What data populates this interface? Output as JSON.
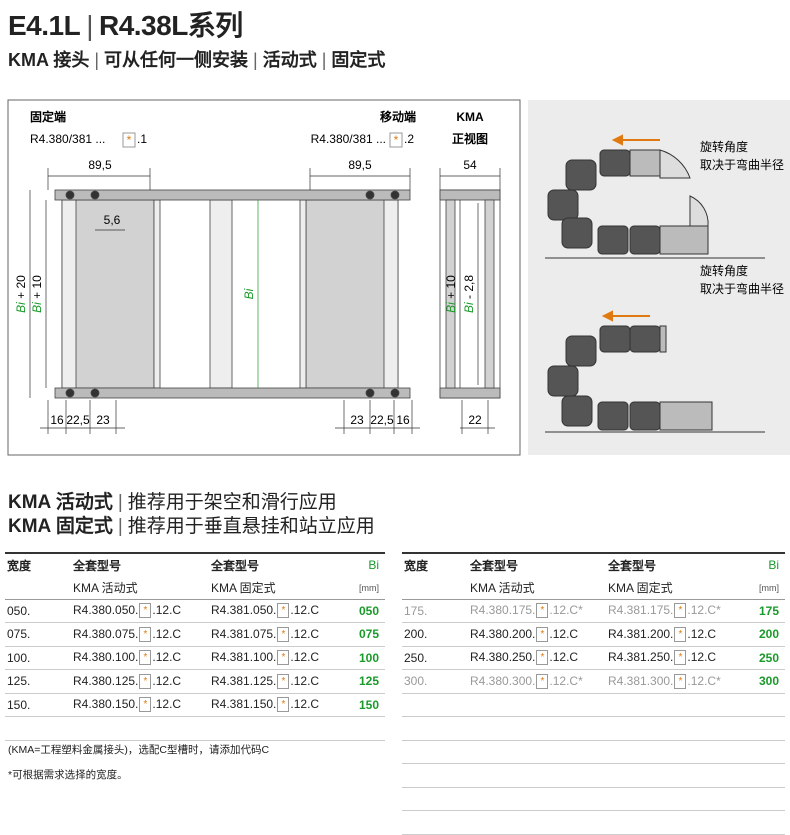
{
  "header": {
    "title_a": "E4.1L",
    "title_b": "R4.38L系列",
    "subtitle": [
      "KMA 接头",
      "可从任何一侧安装",
      "活动式",
      "固定式"
    ]
  },
  "diagram": {
    "fixed_end": "固定端",
    "fixed_code": "R4.380/381 ...",
    "fixed_suffix": ".1",
    "moving_end": "移动端",
    "moving_code": "R4.380/381 ...",
    "moving_suffix": ".2",
    "kma": "KMA",
    "front_view": "正视图",
    "marker": "*",
    "dim_left": "89,5",
    "dim_right": "89,5",
    "dim_front": "54",
    "dim_small": "5,6",
    "dim_center": "Bi",
    "vertical": [
      {
        "var": "Bi",
        "rest": " + 20"
      },
      {
        "var": "Bi",
        "rest": " + 10"
      },
      {
        "var": "Bi",
        "rest": " + 10"
      },
      {
        "var": "Bi",
        "rest": " - 2,8"
      }
    ],
    "bottom_left": [
      "16",
      "22,5",
      "23"
    ],
    "bottom_right": [
      "23",
      "22,5",
      "16"
    ],
    "bottom_front": "22",
    "note_top": [
      "旋转角度",
      "取决于弯曲半径"
    ],
    "note_bottom": [
      "旋转角度",
      "取决于弯曲半径"
    ]
  },
  "sections": [
    {
      "name": "KMA 活动式",
      "text": "推荐用于架空和滑行应用"
    },
    {
      "name": "KMA 固定式",
      "text": "推荐用于垂直悬挂和站立应用"
    }
  ],
  "tables": {
    "marker": "*",
    "header": {
      "width": "宽度",
      "model": "全套型号",
      "active": "KMA 活动式",
      "fixed": "KMA 固定式",
      "bi": "Bi",
      "unit": "[mm]"
    },
    "left": [
      {
        "width": "050.",
        "active": [
          "R4.380.050.",
          ".12.C"
        ],
        "fixed": [
          "R4.381.050.",
          ".12.C"
        ],
        "bi": "050"
      },
      {
        "width": "075.",
        "active": [
          "R4.380.075.",
          ".12.C"
        ],
        "fixed": [
          "R4.381.075.",
          ".12.C"
        ],
        "bi": "075"
      },
      {
        "width": "100.",
        "active": [
          "R4.380.100.",
          ".12.C"
        ],
        "fixed": [
          "R4.381.100.",
          ".12.C"
        ],
        "bi": "100"
      },
      {
        "width": "125.",
        "active": [
          "R4.380.125.",
          ".12.C"
        ],
        "fixed": [
          "R4.381.125.",
          ".12.C"
        ],
        "bi": "125"
      },
      {
        "width": "150.",
        "active": [
          "R4.380.150.",
          ".12.C"
        ],
        "fixed": [
          "R4.381.150.",
          ".12.C"
        ],
        "bi": "150"
      }
    ],
    "right": [
      {
        "width": "175.",
        "active": [
          "R4.380.175.",
          ".12.C*"
        ],
        "fixed": [
          "R4.381.175.",
          ".12.C*"
        ],
        "bi": "175"
      },
      {
        "width": "200.",
        "active": [
          "R4.380.200.",
          ".12.C"
        ],
        "fixed": [
          "R4.381.200.",
          ".12.C"
        ],
        "bi": "200"
      },
      {
        "width": "250.",
        "active": [
          "R4.380.250.",
          ".12.C"
        ],
        "fixed": [
          "R4.381.250.",
          ".12.C"
        ],
        "bi": "250"
      },
      {
        "width": "300.",
        "active": [
          "R4.380.300.",
          ".12.C*"
        ],
        "fixed": [
          "R4.381.300.",
          ".12.C*"
        ],
        "bi": "300"
      }
    ]
  },
  "footnotes": [
    "(KMA=工程塑料金属接头)，选配C型槽时，请添加代码C",
    "*可根据需求选择的宽度。"
  ]
}
